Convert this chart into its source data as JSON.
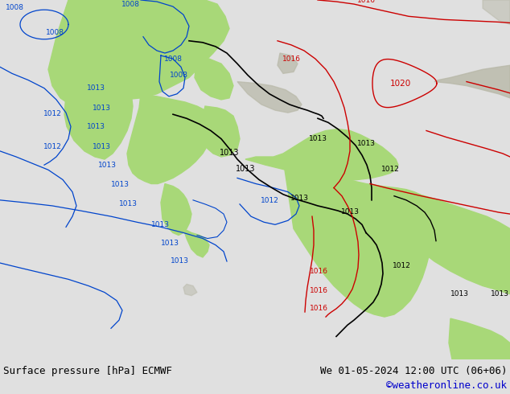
{
  "title_left": "Surface pressure [hPa] ECMWF",
  "title_right": "We 01-05-2024 12:00 UTC (06+06)",
  "credit": "©weatheronline.co.uk",
  "bg_map_color": "#e8e8e8",
  "green_land_color": "#a8d878",
  "gray_land_color": "#b8b8a8",
  "ocean_color": "#e0e8f0",
  "footer_bg": "#e0e0e0",
  "footer_text_color": "#000000",
  "credit_color": "#0000cc",
  "blue_line": "#0044cc",
  "blue_label": "#0044cc",
  "red_line": "#cc0000",
  "red_label": "#cc0000",
  "black_line": "#000000",
  "black_label": "#000000",
  "font_size_footer": 9,
  "fig_width": 6.34,
  "fig_height": 4.9,
  "dpi": 100
}
